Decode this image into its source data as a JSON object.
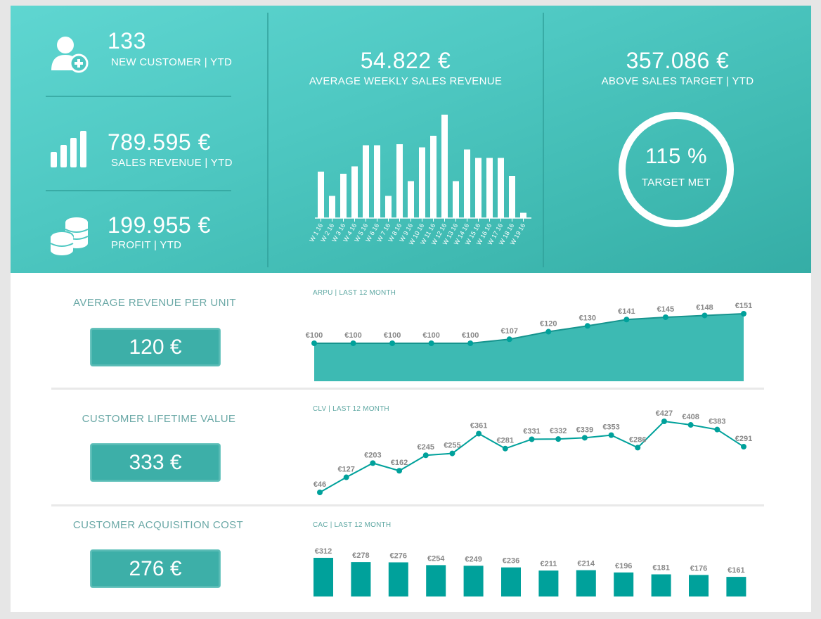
{
  "kpis": {
    "new_customer": {
      "value": "133",
      "label": "NEW CUSTOMER | YTD"
    },
    "sales_revenue": {
      "value": "789.595 €",
      "label": "SALES REVENUE | YTD"
    },
    "profit": {
      "value": "199.955 €",
      "label": "PROFIT | YTD"
    },
    "avg_weekly": {
      "value": "54.822 €",
      "label": "AVERAGE WEEKLY SALES REVENUE"
    },
    "above_target": {
      "value": "357.086 €",
      "label": "ABOVE SALES TARGET | YTD"
    },
    "target_met": {
      "value": "115 %",
      "label": "TARGET MET"
    }
  },
  "rows": {
    "arpu": {
      "title": "AVERAGE REVENUE PER UNIT",
      "value": "120 €"
    },
    "clv": {
      "title": "CUSTOMER LIFETIME VALUE",
      "value": "333 €"
    },
    "cac": {
      "title": "CUSTOMER ACQUISITION COST",
      "value": "276 €"
    }
  },
  "icons": [
    "add-user-icon",
    "bar-chart-icon",
    "coins-icon"
  ],
  "colors": {
    "teal_top": "#4ec8c2",
    "teal_dark": "#00a19b",
    "area_fill": "#3dbab3",
    "label_gray": "#888888"
  },
  "chart_data": [
    {
      "type": "bar",
      "title": "",
      "categories": [
        "W 1 16",
        "W 2 16",
        "W 3 16",
        "W 4 16",
        "W 5 16",
        "W 6 16",
        "W 7 16",
        "W 8 16",
        "W 9 16",
        "W 10 16",
        "W 11 16",
        "W 12 16",
        "W 13 16",
        "W 14 16",
        "W 15 16",
        "W 16 16",
        "W 17 16",
        "W 18 16",
        "W 19 16"
      ],
      "values": [
        44,
        21,
        42,
        49,
        69,
        69,
        21,
        70,
        35,
        67,
        78,
        98,
        35,
        65,
        57,
        57,
        57,
        40,
        5
      ],
      "ylim": [
        0,
        100
      ],
      "grid": false
    },
    {
      "type": "area",
      "title": "ARPU | LAST 12 MONTH",
      "values": [
        100,
        100,
        100,
        100,
        100,
        107,
        120,
        130,
        141,
        145,
        148,
        151
      ],
      "data_labels": [
        "€100",
        "€100",
        "€100",
        "€100",
        "€100",
        "€107",
        "€120",
        "€130",
        "€141",
        "€145",
        "€148",
        "€151"
      ],
      "ylim": [
        0,
        160
      ]
    },
    {
      "type": "line",
      "title": "CLV | LAST 12 MONTH",
      "values": [
        46,
        127,
        203,
        162,
        245,
        255,
        361,
        281,
        331,
        332,
        339,
        353,
        286,
        427,
        408,
        383,
        291
      ],
      "data_labels": [
        "€46",
        "€127",
        "€203",
        "€162",
        "€245",
        "€255",
        "€361",
        "€281",
        "€331",
        "€332",
        "€339",
        "€353",
        "€286",
        "€427",
        "€408",
        "€383",
        "€291"
      ],
      "ylim": [
        46,
        427
      ]
    },
    {
      "type": "bar",
      "title": "CAC | LAST 12 MONTH",
      "values": [
        312,
        278,
        276,
        254,
        249,
        236,
        211,
        214,
        196,
        181,
        176,
        161
      ],
      "data_labels": [
        "€312",
        "€278",
        "€276",
        "€254",
        "€249",
        "€236",
        "€211",
        "€214",
        "€196",
        "€181",
        "€176",
        "€161"
      ],
      "ylim": [
        0,
        312
      ]
    }
  ]
}
